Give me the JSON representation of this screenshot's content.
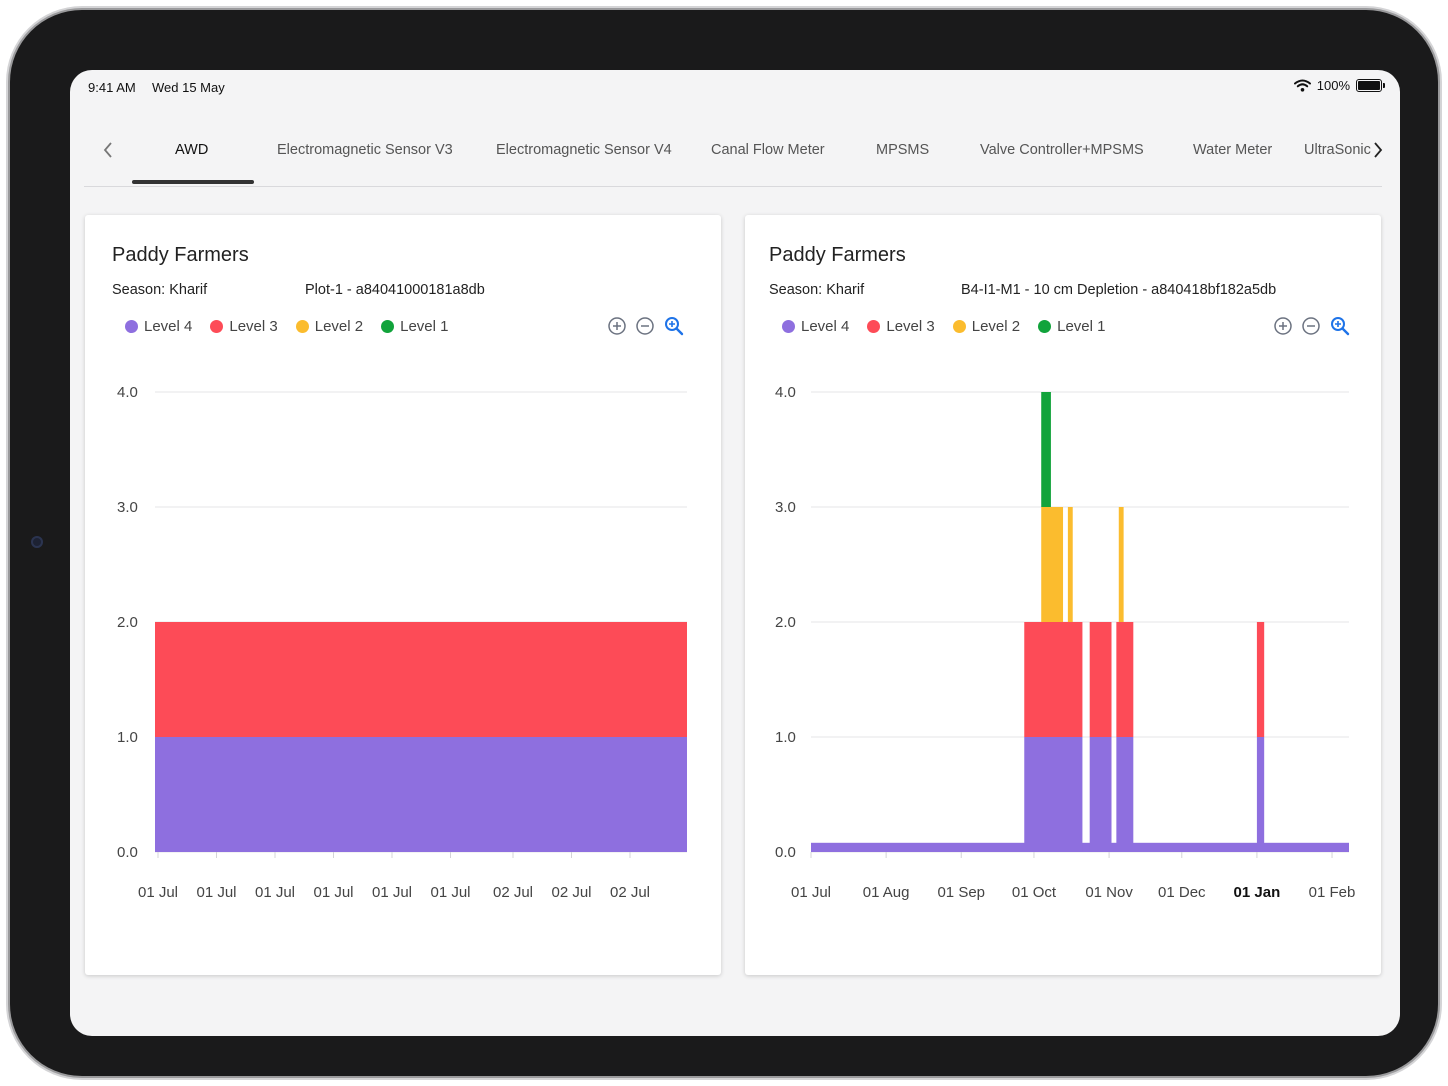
{
  "status_bar": {
    "time": "9:41 AM",
    "date": "Wed 15 May",
    "battery": "100%"
  },
  "tabs": [
    {
      "label": "AWD",
      "active": true
    },
    {
      "label": "Electromagnetic Sensor V3"
    },
    {
      "label": "Electromagnetic Sensor V4"
    },
    {
      "label": "Canal Flow Meter"
    },
    {
      "label": "MPSMS"
    },
    {
      "label": "Valve Controller+MPSMS"
    },
    {
      "label": "Water Meter"
    },
    {
      "label": "UltraSonic"
    }
  ],
  "icons": {
    "prev": "chevron-left-icon",
    "next": "chevron-right-icon",
    "zoom_in": "plus-circle-icon",
    "zoom_out": "minus-circle-icon",
    "zoom_reset": "magnifier-icon"
  },
  "colors": {
    "level4": "#8e6fdf",
    "level3": "#fd4b57",
    "level2": "#fbbc2e",
    "level1": "#11a33b",
    "accent": "#1e73e8"
  },
  "cards": [
    {
      "title": "Paddy Farmers",
      "season": "Season: Kharif",
      "device": "Plot-1 - a84041000181a8db",
      "legend": [
        "Level 4",
        "Level 3",
        "Level 2",
        "Level 1"
      ]
    },
    {
      "title": "Paddy Farmers",
      "season": "Season: Kharif",
      "device": "B4-I1-M1 - 10 cm Depletion - a840418bf182a5db",
      "legend": [
        "Level 4",
        "Level 3",
        "Level 2",
        "Level 1"
      ]
    }
  ],
  "chart_data": [
    {
      "type": "area",
      "stacked": true,
      "ylim": [
        0,
        4
      ],
      "y_ticks": [
        "4.0",
        "3.0",
        "2.0",
        "1.0",
        "0.0"
      ],
      "x_tick_labels": [
        "01 Jul",
        "01 Jul",
        "01 Jul",
        "01 Jul",
        "01 Jul",
        "01 Jul",
        "02 Jul",
        "02 Jul",
        "02 Jul"
      ],
      "grid": true,
      "legend_position": "top-left",
      "series": [
        {
          "name": "Level 4",
          "segments": [
            {
              "start": 0,
              "end": 1,
              "value": 1
            }
          ]
        },
        {
          "name": "Level 3",
          "segments": [
            {
              "start": 0,
              "end": 1,
              "value": 1
            }
          ]
        },
        {
          "name": "Level 2",
          "segments": []
        },
        {
          "name": "Level 1",
          "segments": []
        }
      ]
    },
    {
      "type": "area",
      "stacked": true,
      "ylim": [
        0,
        4
      ],
      "y_ticks": [
        "4.0",
        "3.0",
        "2.0",
        "1.0",
        "0.0"
      ],
      "x_tick_labels": [
        "01 Jul",
        "01 Aug",
        "01 Sep",
        "01 Oct",
        "01 Nov",
        "01 Dec",
        "01 Jan",
        "01 Feb"
      ],
      "bold_tick": "01 Jan",
      "grid": true,
      "legend_position": "top-left",
      "series": [
        {
          "name": "Level 4",
          "baseline": 0.04,
          "segments": [
            {
              "start": "2023-09-27",
              "end": "2023-10-21",
              "value": 1
            },
            {
              "start": "2023-10-24",
              "end": "2023-11-02",
              "value": 1
            },
            {
              "start": "2023-11-04",
              "end": "2023-11-11",
              "value": 1
            },
            {
              "start": "2024-01-01",
              "end": "2024-01-04",
              "value": 1
            }
          ]
        },
        {
          "name": "Level 3",
          "segments": [
            {
              "start": "2023-09-27",
              "end": "2023-10-21",
              "value": 1
            },
            {
              "start": "2023-10-24",
              "end": "2023-11-02",
              "value": 1
            },
            {
              "start": "2023-11-04",
              "end": "2023-11-11",
              "value": 1
            },
            {
              "start": "2024-01-01",
              "end": "2024-01-04",
              "value": 1
            }
          ]
        },
        {
          "name": "Level 2",
          "segments": [
            {
              "start": "2023-10-04",
              "end": "2023-10-13",
              "value": 1
            },
            {
              "start": "2023-10-15",
              "end": "2023-10-17",
              "value": 1
            },
            {
              "start": "2023-11-05",
              "end": "2023-11-07",
              "value": 1
            }
          ]
        },
        {
          "name": "Level 1",
          "segments": [
            {
              "start": "2023-10-04",
              "end": "2023-10-08",
              "value": 1
            }
          ]
        }
      ]
    }
  ]
}
